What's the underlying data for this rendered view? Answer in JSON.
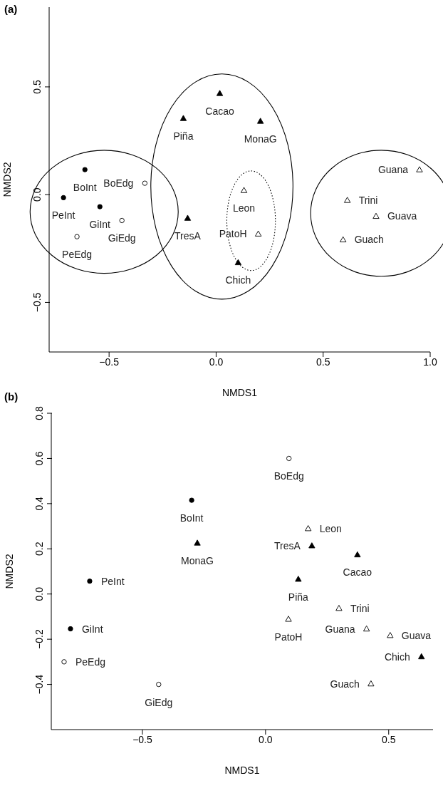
{
  "chart_data": [
    {
      "type": "scatter",
      "title": "(a)",
      "xlabel": "NMDS1",
      "ylabel": "NMDS2",
      "xlim": [
        -0.78,
        1.0
      ],
      "ylim": [
        -0.73,
        0.87
      ],
      "xticks": [
        {
          "value": -0.5,
          "label": "−0.5"
        },
        {
          "value": 0,
          "label": "0.0"
        },
        {
          "value": 0.5,
          "label": "0.5"
        },
        {
          "value": 1,
          "label": "1.0"
        }
      ],
      "yticks": [
        {
          "value": -0.5,
          "label": "−0.5"
        },
        {
          "value": 0,
          "label": "0.0"
        },
        {
          "value": 0.5,
          "label": "0.5"
        }
      ],
      "grid": false,
      "legend": false,
      "series": [
        {
          "color": "#000000",
          "marker": "circle",
          "x": [
            -0.613,
            -0.713,
            -0.543
          ],
          "values": [
            0.116,
            -0.014,
            -0.056
          ]
        },
        {
          "color": "#000000",
          "marker": "circle",
          "x": [
            -0.333,
            -0.44,
            -0.65
          ],
          "values": [
            0.053,
            -0.12,
            -0.195
          ]
        },
        {
          "color": "#000000",
          "marker": "triangle",
          "x": [
            0.017,
            -0.153,
            0.207,
            -0.133,
            0.103
          ],
          "values": [
            0.47,
            0.354,
            0.341,
            -0.109,
            -0.315
          ]
        },
        {
          "color": "#000000",
          "marker": "triangle",
          "x": [
            0.13,
            0.197
          ],
          "values": [
            0.02,
            -0.182
          ]
        },
        {
          "color": "#000000",
          "marker": "triangle",
          "x": [
            0.95,
            0.613,
            0.747,
            0.593
          ],
          "values": [
            0.116,
            -0.026,
            -0.1,
            -0.209
          ]
        }
      ],
      "annotations": [
        {
          "text": "BoInt",
          "x": -0.613,
          "y": 0.116
        },
        {
          "text": "BoEdg",
          "x": -0.333,
          "y": 0.053
        },
        {
          "text": "PeInt",
          "x": -0.713,
          "y": -0.014
        },
        {
          "text": "GiInt",
          "x": -0.543,
          "y": -0.056
        },
        {
          "text": "GiEdg",
          "x": -0.44,
          "y": -0.12
        },
        {
          "text": "PeEdg",
          "x": -0.65,
          "y": -0.195
        },
        {
          "text": "Cacao",
          "x": 0.017,
          "y": 0.47
        },
        {
          "text": "Piña",
          "x": -0.153,
          "y": 0.354
        },
        {
          "text": "MonaG",
          "x": 0.207,
          "y": 0.341
        },
        {
          "text": "TresA",
          "x": -0.133,
          "y": -0.109
        },
        {
          "text": "Leon",
          "x": 0.13,
          "y": 0.02
        },
        {
          "text": "PatoH",
          "x": 0.197,
          "y": -0.182
        },
        {
          "text": "Chich",
          "x": 0.103,
          "y": -0.315
        },
        {
          "text": "Guana",
          "x": 0.95,
          "y": 0.116
        },
        {
          "text": "Trini",
          "x": 0.613,
          "y": -0.026
        },
        {
          "text": "Guava",
          "x": 0.747,
          "y": -0.1
        },
        {
          "text": "Guach",
          "x": 0.593,
          "y": -0.209
        }
      ]
    },
    {
      "type": "scatter",
      "title": "(b)",
      "xlabel": "NMDS1",
      "ylabel": "NMDS2",
      "xlim": [
        -0.87,
        0.68
      ],
      "ylim": [
        -0.6,
        0.8
      ],
      "xticks": [
        {
          "value": -0.5,
          "label": "−0.5"
        },
        {
          "value": 0,
          "label": "0.0"
        },
        {
          "value": 0.5,
          "label": "0.5"
        }
      ],
      "yticks": [
        {
          "value": -0.4,
          "label": "−0.4"
        },
        {
          "value": -0.2,
          "label": "−0.2"
        },
        {
          "value": 0,
          "label": "0.0"
        },
        {
          "value": 0.2,
          "label": "0.2"
        },
        {
          "value": 0.4,
          "label": "0.4"
        },
        {
          "value": 0.6,
          "label": "0.6"
        },
        {
          "value": 0.8,
          "label": "0.8"
        }
      ],
      "grid": false,
      "legend": false,
      "series": [
        {
          "color": "#000000",
          "marker": "circle",
          "x": [
            -0.3,
            -0.714,
            -0.792
          ],
          "values": [
            0.415,
            0.057,
            -0.154
          ]
        },
        {
          "color": "#000000",
          "marker": "circle",
          "x": [
            0.095,
            -0.818,
            -0.434
          ],
          "values": [
            0.6,
            -0.3,
            -0.4
          ]
        },
        {
          "color": "#000000",
          "marker": "triangle",
          "x": [
            -0.277,
            0.188,
            0.373,
            0.133,
            0.633
          ],
          "values": [
            0.226,
            0.214,
            0.174,
            0.066,
            -0.277
          ]
        },
        {
          "color": "#000000",
          "marker": "triangle",
          "x": [
            0.173,
            0.093,
            0.298,
            0.41,
            0.506,
            0.428
          ],
          "values": [
            0.29,
            -0.111,
            -0.063,
            -0.154,
            -0.183,
            -0.397
          ]
        }
      ],
      "annotations": [
        {
          "text": "BoEdg",
          "x": 0.095,
          "y": 0.6
        },
        {
          "text": "BoInt",
          "x": -0.3,
          "y": 0.415
        },
        {
          "text": "MonaG",
          "x": -0.277,
          "y": 0.226
        },
        {
          "text": "Leon",
          "x": 0.173,
          "y": 0.29
        },
        {
          "text": "TresA",
          "x": 0.188,
          "y": 0.214
        },
        {
          "text": "Cacao",
          "x": 0.373,
          "y": 0.174
        },
        {
          "text": "Piña",
          "x": 0.133,
          "y": 0.066
        },
        {
          "text": "PeInt",
          "x": -0.714,
          "y": 0.057
        },
        {
          "text": "GiInt",
          "x": -0.792,
          "y": -0.154
        },
        {
          "text": "PeEdg",
          "x": -0.818,
          "y": -0.3
        },
        {
          "text": "GiEdg",
          "x": -0.434,
          "y": -0.4
        },
        {
          "text": "PatoH",
          "x": 0.093,
          "y": -0.111
        },
        {
          "text": "Trini",
          "x": 0.298,
          "y": -0.063
        },
        {
          "text": "Guana",
          "x": 0.41,
          "y": -0.154
        },
        {
          "text": "Guava",
          "x": 0.506,
          "y": -0.183
        },
        {
          "text": "Chich",
          "x": 0.633,
          "y": -0.277
        },
        {
          "text": "Guach",
          "x": 0.428,
          "y": -0.397
        }
      ]
    }
  ]
}
